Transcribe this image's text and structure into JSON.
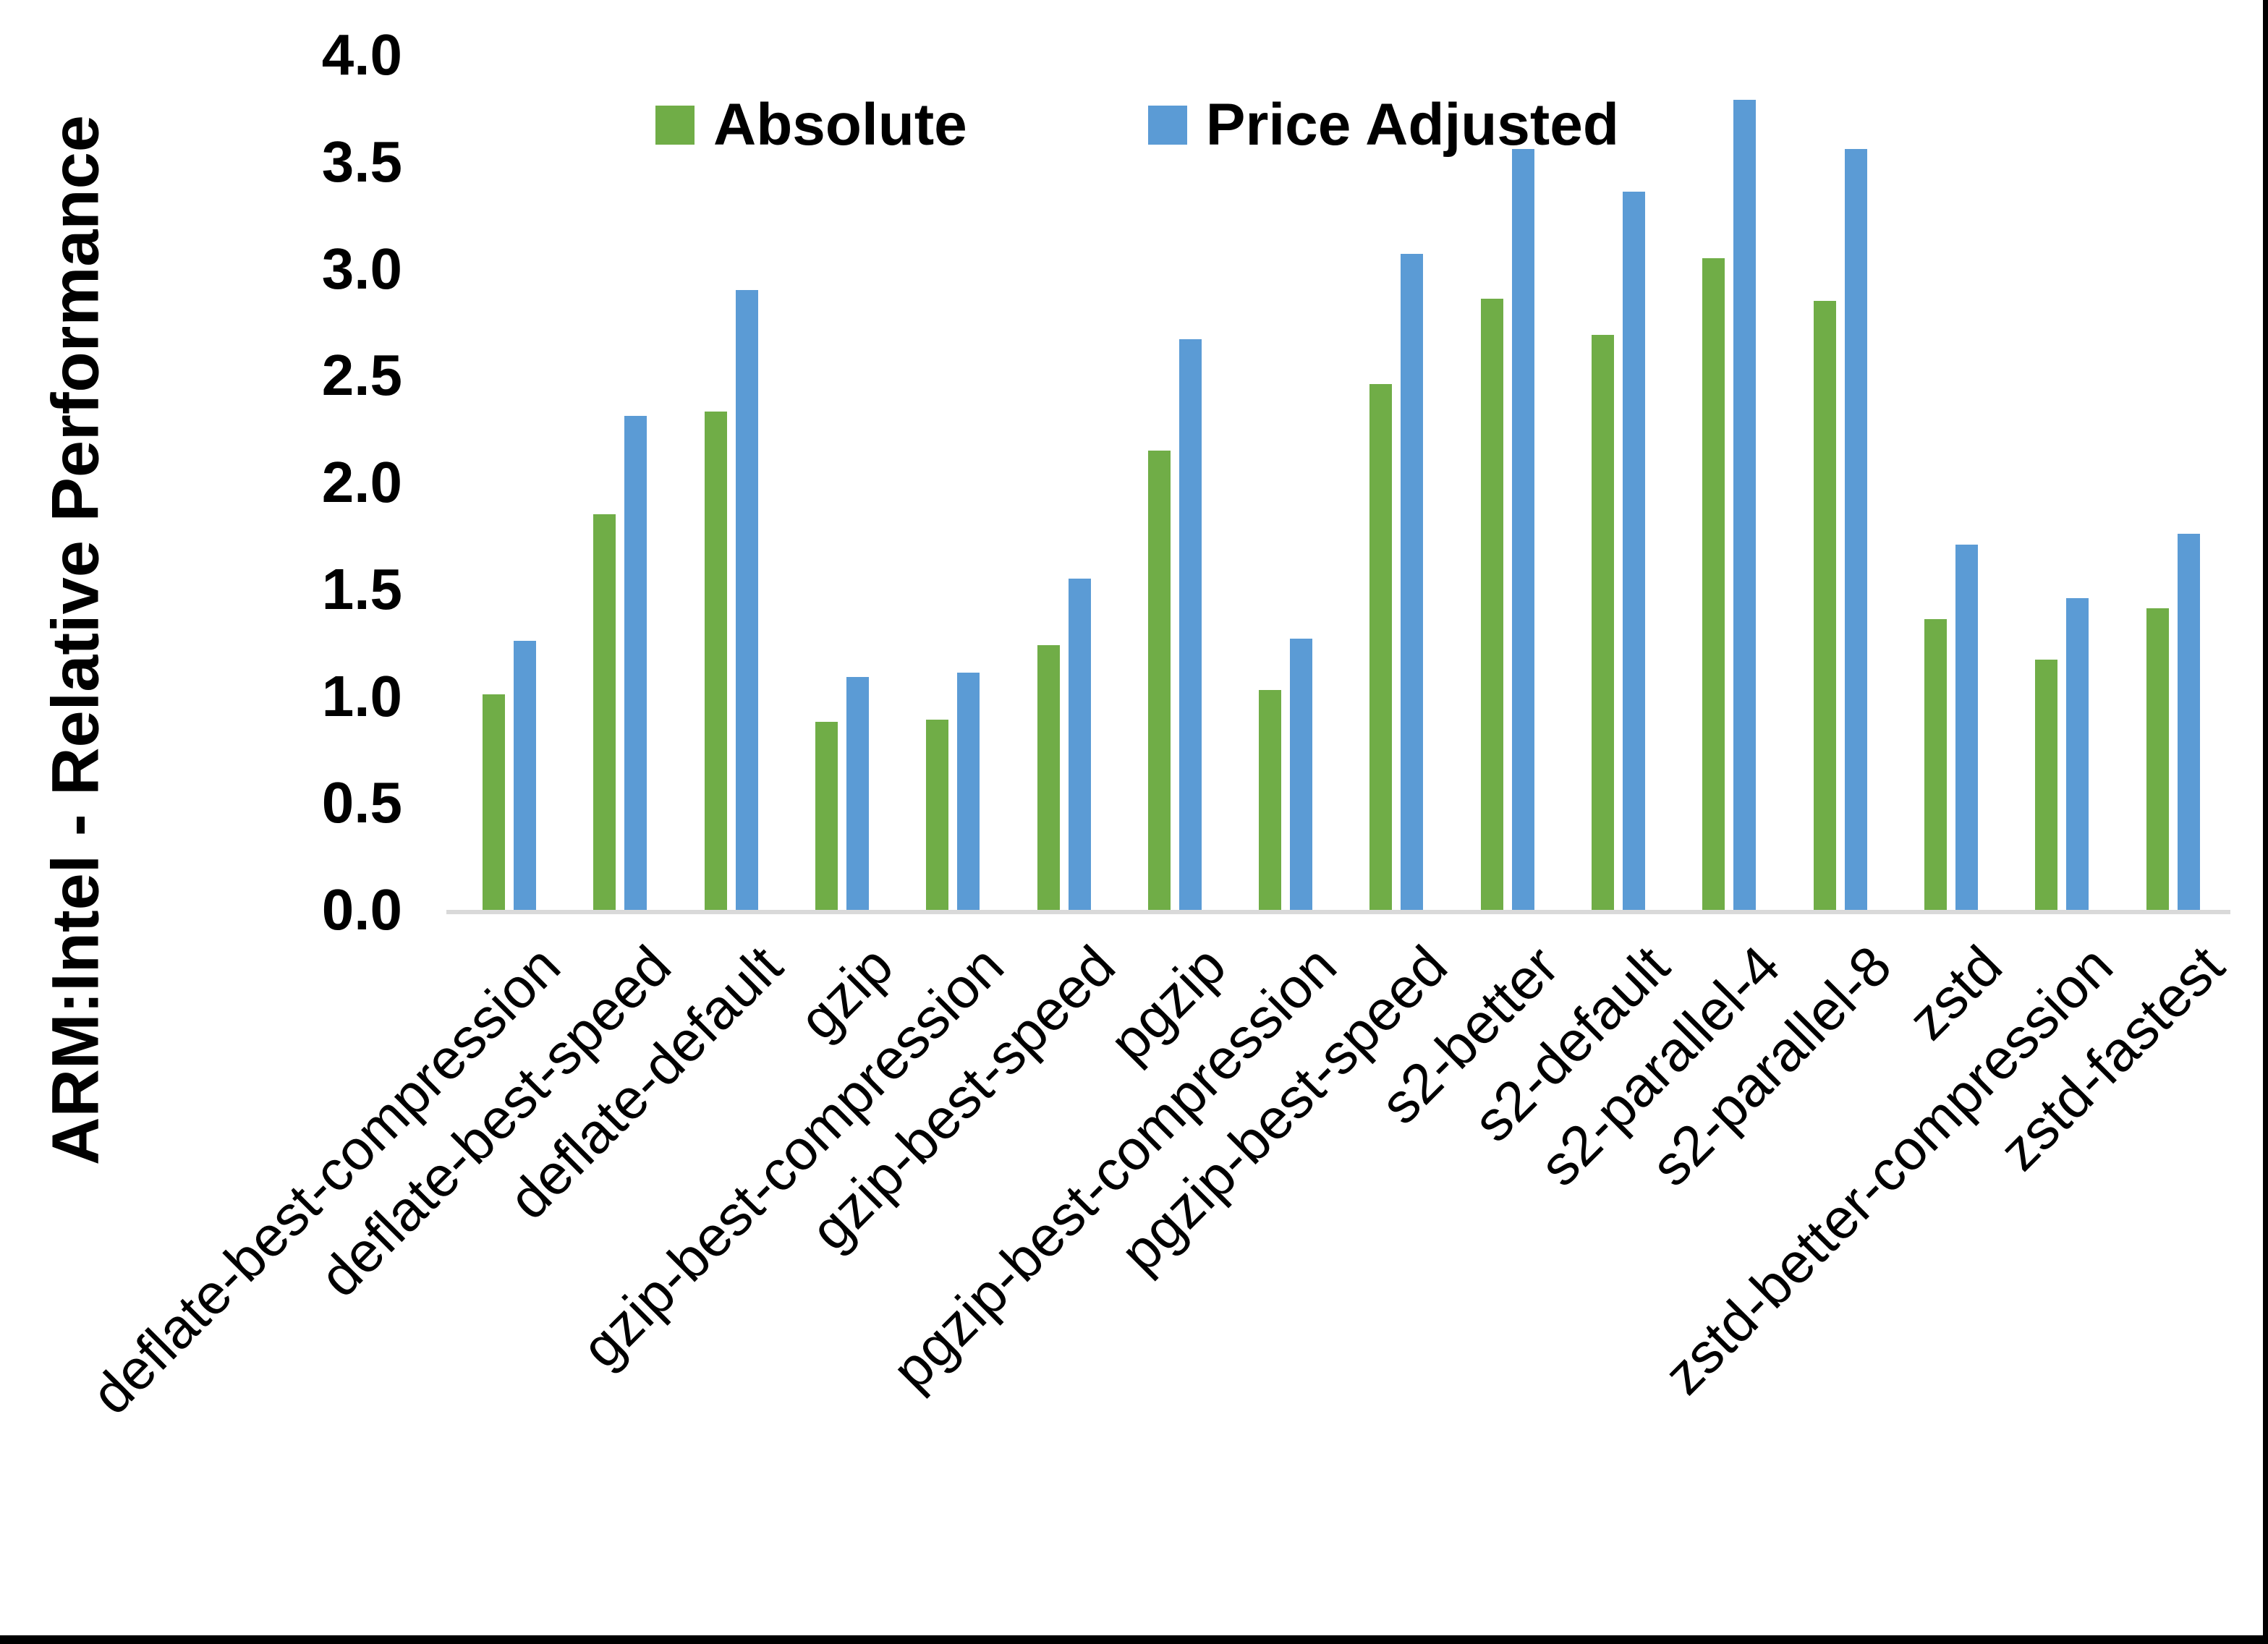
{
  "page": {
    "background": "#ffffff",
    "border_right_color": "#000000",
    "border_bottom_color": "#000000"
  },
  "chart_data": {
    "type": "bar",
    "title": "",
    "xlabel": "",
    "ylabel": "ARM:Intel - Relative Performance",
    "ylim": [
      0.0,
      4.0
    ],
    "ytick_step": 0.5,
    "ytick_labels": [
      "0.0",
      "0.5",
      "1.0",
      "1.5",
      "2.0",
      "2.5",
      "3.0",
      "3.5",
      "4.0"
    ],
    "grid": false,
    "legend_position": "top-center",
    "axis_line_color": "#d9d9d9",
    "categories": [
      "deflate-best-compression",
      "deflate-best-speed",
      "deflate-default",
      "gzip",
      "gzip-best-compression",
      "gzip-best-speed",
      "pgzip",
      "pgzip-best-compression",
      "pgzip-best-speed",
      "s2-better",
      "s2-default",
      "s2-parallel-4",
      "s2-parallel-8",
      "zstd",
      "zstd-better-compression",
      "zstd-fastest"
    ],
    "series": [
      {
        "name": "Absolute",
        "color": "#70ad47",
        "values": [
          1.01,
          1.85,
          2.33,
          0.88,
          0.89,
          1.24,
          2.15,
          1.03,
          2.46,
          2.86,
          2.69,
          3.05,
          2.85,
          1.36,
          1.17,
          1.41
        ]
      },
      {
        "name": "Price Adjusted",
        "color": "#5b9bd5",
        "values": [
          1.26,
          2.31,
          2.9,
          1.09,
          1.11,
          1.55,
          2.67,
          1.27,
          3.07,
          3.56,
          3.36,
          3.79,
          3.56,
          1.71,
          1.46,
          1.76
        ]
      }
    ]
  }
}
